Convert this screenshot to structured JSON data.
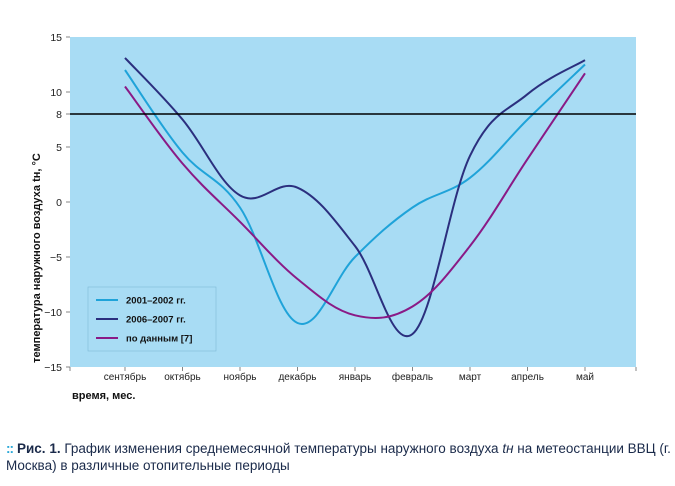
{
  "chart_data": {
    "type": "line",
    "categories": [
      "сентябрь",
      "октябрь",
      "ноябрь",
      "декабрь",
      "январь",
      "февраль",
      "март",
      "апрель",
      "май"
    ],
    "ylabel": "температура наружного воздуха tн, °С",
    "xlabel": "время, мес.",
    "ylim": [
      -15,
      15
    ],
    "yticks": [
      -15,
      -10,
      -5,
      0,
      5,
      8,
      10,
      15
    ],
    "reference_line": 8,
    "grid": false,
    "legend_position": "bottom-left",
    "background": "#a8dcf4",
    "series": [
      {
        "name": "2001–2002 гг.",
        "color": "#1fa3d9",
        "values": [
          12.0,
          4.5,
          -0.5,
          -11.0,
          -5.0,
          -0.5,
          2.2,
          7.5,
          12.5
        ]
      },
      {
        "name": "2006–2007 гг.",
        "color": "#2b2f7e",
        "values": [
          13.1,
          7.5,
          0.6,
          1.3,
          -4.0,
          -12.0,
          4.2,
          9.8,
          12.9
        ]
      },
      {
        "name": "по данным [7]",
        "color": "#8a1a86",
        "values": [
          10.5,
          3.5,
          -1.8,
          -7.0,
          -10.3,
          -9.5,
          -4.0,
          3.9,
          11.7
        ]
      }
    ]
  },
  "caption": {
    "dots": "::",
    "fig_label": "Рис. 1.",
    "text_before": " График изменения среднемесячной температуры наружного воздуха ",
    "symbol": "tн",
    "text_after": " на метеостанции ВВЦ (г. Москва) в различные отопительные периоды"
  }
}
